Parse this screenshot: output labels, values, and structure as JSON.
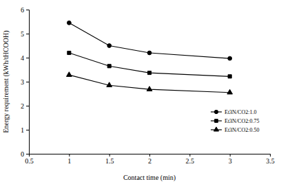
{
  "chart_data": {
    "type": "line",
    "x_label": "Contact time (min)",
    "y_label": "Energy requirement (kWh/tHCOOH)",
    "x": [
      1,
      1.5,
      2,
      3
    ],
    "series": [
      {
        "name": "Et3N/CO2:1.0",
        "color": "#000000",
        "marker": "circle",
        "line_style": "solid",
        "values": [
          5.45,
          4.5,
          4.2,
          3.97
        ]
      },
      {
        "name": "Et3N/CO2:0.75",
        "color": "#000000",
        "marker": "square",
        "line_style": "solid",
        "values": [
          4.2,
          3.65,
          3.37,
          3.22
        ]
      },
      {
        "name": "Et3N/CO2:0.50",
        "color": "#000000",
        "marker": "triangle",
        "line_style": "solid",
        "values": [
          3.28,
          2.85,
          2.68,
          2.55
        ]
      }
    ],
    "xlim": [
      0.5,
      3.5
    ],
    "xticks": [
      0.5,
      1,
      1.5,
      2,
      2.5,
      3,
      3.5
    ],
    "ylim": [
      0,
      6
    ],
    "yticks": [
      0,
      1,
      2,
      3,
      4,
      5,
      6
    ],
    "grid": false,
    "legend": "lower right"
  }
}
